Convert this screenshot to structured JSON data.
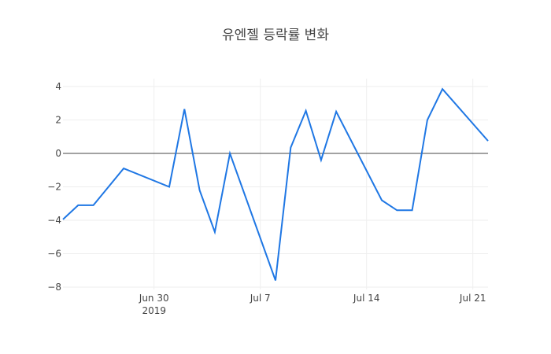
{
  "chart_data": {
    "type": "line",
    "title": "유엔젤 등락률 변화",
    "xlabel": "",
    "ylabel": "",
    "ylim": [
      -8.5,
      4.5
    ],
    "grid": true,
    "legend": "none",
    "line_color": "#1f77e4",
    "zero_line_color": "#444444",
    "x_ticks": [
      {
        "date": "2019-06-30",
        "label": "Jun 30",
        "sublabel": "2019"
      },
      {
        "date": "2019-07-07",
        "label": "Jul 7",
        "sublabel": ""
      },
      {
        "date": "2019-07-14",
        "label": "Jul 14",
        "sublabel": ""
      },
      {
        "date": "2019-07-21",
        "label": "Jul 21",
        "sublabel": ""
      }
    ],
    "y_ticks": [
      4,
      2,
      0,
      -2,
      -4,
      -6,
      -8
    ],
    "x_range": [
      "2019-06-24",
      "2019-07-22"
    ],
    "series": [
      {
        "name": "등락률",
        "x": [
          "2019-06-24",
          "2019-06-25",
          "2019-06-26",
          "2019-06-28",
          "2019-07-01",
          "2019-07-02",
          "2019-07-03",
          "2019-07-04",
          "2019-07-05",
          "2019-07-08",
          "2019-07-09",
          "2019-07-10",
          "2019-07-11",
          "2019-07-12",
          "2019-07-15",
          "2019-07-16",
          "2019-07-17",
          "2019-07-18",
          "2019-07-19",
          "2019-07-22"
        ],
        "values": [
          -3.95,
          -3.1,
          -3.1,
          -0.9,
          -2.0,
          2.65,
          -2.2,
          -4.7,
          0.0,
          -7.6,
          0.35,
          2.55,
          -0.4,
          2.5,
          -2.8,
          -3.4,
          -3.4,
          2.0,
          3.85,
          0.75
        ]
      }
    ]
  }
}
